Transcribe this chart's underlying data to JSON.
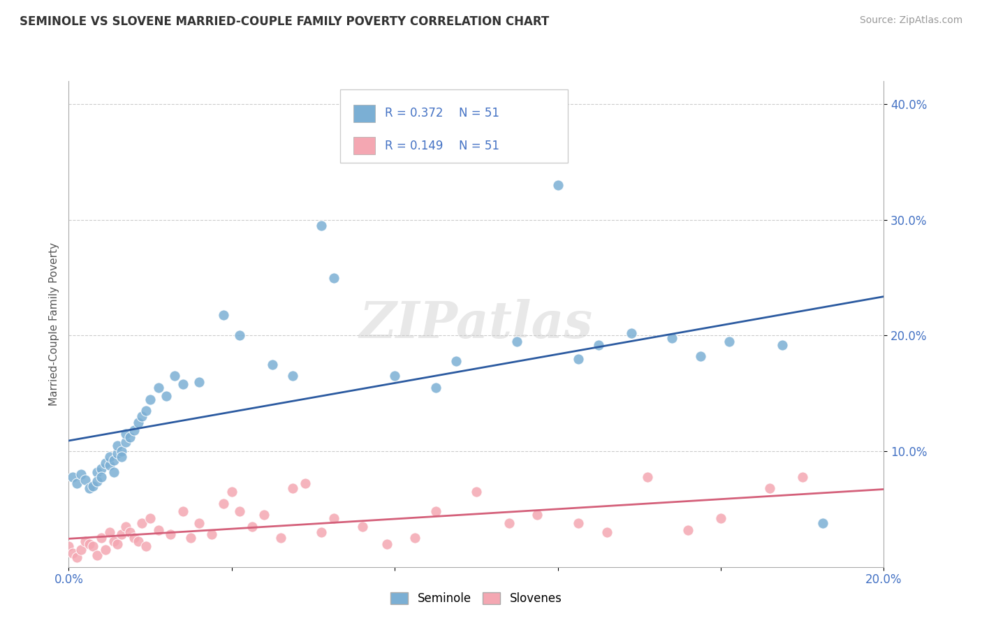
{
  "title": "SEMINOLE VS SLOVENE MARRIED-COUPLE FAMILY POVERTY CORRELATION CHART",
  "source": "Source: ZipAtlas.com",
  "ylabel": "Married-Couple Family Poverty",
  "xlim": [
    0.0,
    0.2
  ],
  "ylim": [
    0.0,
    0.42
  ],
  "xticks": [
    0.0,
    0.04,
    0.08,
    0.12,
    0.16,
    0.2
  ],
  "xticklabels": [
    "0.0%",
    "",
    "",
    "",
    "",
    "20.0%"
  ],
  "yticks": [
    0.1,
    0.2,
    0.3,
    0.4
  ],
  "yticklabels": [
    "10.0%",
    "20.0%",
    "30.0%",
    "40.0%"
  ],
  "seminole_R": "0.372",
  "seminole_N": "51",
  "slovene_R": "0.149",
  "slovene_N": "51",
  "seminole_color": "#7BAFD4",
  "slovene_color": "#F4A7B2",
  "seminole_line_color": "#2B5AA0",
  "slovene_line_color": "#D4607A",
  "background_color": "#ffffff",
  "seminole_x": [
    0.001,
    0.002,
    0.003,
    0.004,
    0.005,
    0.006,
    0.007,
    0.007,
    0.008,
    0.008,
    0.009,
    0.01,
    0.01,
    0.011,
    0.011,
    0.012,
    0.012,
    0.013,
    0.013,
    0.014,
    0.014,
    0.015,
    0.016,
    0.017,
    0.018,
    0.019,
    0.02,
    0.022,
    0.024,
    0.026,
    0.028,
    0.032,
    0.038,
    0.042,
    0.05,
    0.055,
    0.062,
    0.065,
    0.08,
    0.09,
    0.095,
    0.11,
    0.12,
    0.125,
    0.13,
    0.138,
    0.148,
    0.155,
    0.162,
    0.175,
    0.185
  ],
  "seminole_y": [
    0.078,
    0.072,
    0.08,
    0.075,
    0.068,
    0.07,
    0.082,
    0.074,
    0.085,
    0.078,
    0.09,
    0.088,
    0.095,
    0.092,
    0.082,
    0.098,
    0.105,
    0.1,
    0.095,
    0.108,
    0.115,
    0.112,
    0.118,
    0.125,
    0.13,
    0.135,
    0.145,
    0.155,
    0.148,
    0.165,
    0.158,
    0.16,
    0.218,
    0.2,
    0.175,
    0.165,
    0.295,
    0.25,
    0.165,
    0.155,
    0.178,
    0.195,
    0.33,
    0.18,
    0.192,
    0.202,
    0.198,
    0.182,
    0.195,
    0.192,
    0.038
  ],
  "slovene_x": [
    0.0,
    0.001,
    0.002,
    0.003,
    0.004,
    0.005,
    0.006,
    0.007,
    0.008,
    0.009,
    0.01,
    0.011,
    0.012,
    0.013,
    0.014,
    0.015,
    0.016,
    0.017,
    0.018,
    0.019,
    0.02,
    0.022,
    0.025,
    0.028,
    0.03,
    0.032,
    0.035,
    0.038,
    0.04,
    0.042,
    0.045,
    0.048,
    0.052,
    0.055,
    0.058,
    0.062,
    0.065,
    0.072,
    0.078,
    0.085,
    0.09,
    0.1,
    0.108,
    0.115,
    0.125,
    0.132,
    0.142,
    0.152,
    0.16,
    0.172,
    0.18
  ],
  "slovene_y": [
    0.018,
    0.012,
    0.008,
    0.015,
    0.022,
    0.02,
    0.018,
    0.01,
    0.025,
    0.015,
    0.03,
    0.022,
    0.02,
    0.028,
    0.035,
    0.03,
    0.025,
    0.022,
    0.038,
    0.018,
    0.042,
    0.032,
    0.028,
    0.048,
    0.025,
    0.038,
    0.028,
    0.055,
    0.065,
    0.048,
    0.035,
    0.045,
    0.025,
    0.068,
    0.072,
    0.03,
    0.042,
    0.035,
    0.02,
    0.025,
    0.048,
    0.065,
    0.038,
    0.045,
    0.038,
    0.03,
    0.078,
    0.032,
    0.042,
    0.068,
    0.078
  ],
  "legend_seminole_label": "Seminole",
  "legend_slovene_label": "Slovenes"
}
